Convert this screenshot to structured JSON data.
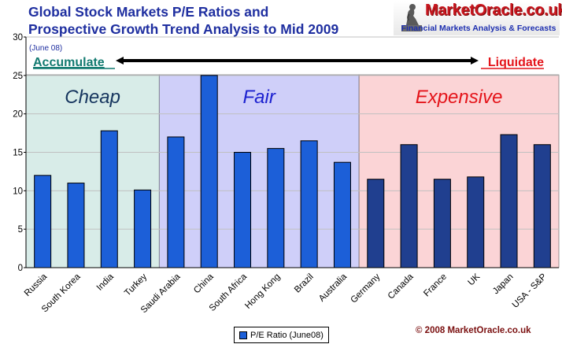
{
  "title_lines": [
    "Global Stock Markets P/E Ratios and",
    "Prospective Growth Trend Analysis to Mid 2009"
  ],
  "logo": {
    "name": "MarketOracle.co.uk",
    "tagline": "Financial Markets Analysis & Forecasts"
  },
  "copyright": "© 2008 MarketOracle.co.uk",
  "chart_data": {
    "type": "bar",
    "title": "Global Stock Markets P/E Ratios and Prospective Growth Trend Analysis to Mid 2009",
    "subtitle": "(June 08)",
    "categories": [
      "Russia",
      "South Korea",
      "India",
      "Turkey",
      "Saudi Arabia",
      "China",
      "South Africa",
      "Hong Kong",
      "Brazil",
      "Australia",
      "Germany",
      "Canada",
      "France",
      "UK",
      "Japan",
      "USA - S&P"
    ],
    "series": [
      {
        "name": "P/E Ratio (June08)",
        "values": [
          12,
          11,
          17.8,
          10.1,
          17,
          25,
          15,
          15.5,
          16.5,
          13.7,
          11.5,
          16,
          11.5,
          11.8,
          17.3,
          16
        ]
      }
    ],
    "ylim": [
      0,
      30
    ],
    "yticks": [
      0,
      5,
      10,
      15,
      20,
      25,
      30
    ],
    "grid": true,
    "legend": "bottom-center",
    "zones": [
      {
        "label": "Cheap",
        "color": "#d8ece8",
        "label_color": "#16355e",
        "from": 0,
        "to": 4
      },
      {
        "label": "Fair",
        "color": "#cfcff9",
        "label_color": "#1d22d0",
        "from": 4,
        "to": 10
      },
      {
        "label": "Expensive",
        "color": "#fbd4d6",
        "label_color": "#e4141a",
        "from": 10,
        "to": 16
      }
    ],
    "arrow": {
      "left_label": "Accumulate",
      "right_label": "Liquidate",
      "left_color": "#127a70",
      "right_color": "#e4141a"
    },
    "colors": {
      "bar": "#1c5fd8",
      "bar_dark": "#203f8f",
      "grid": "#c0c0c0"
    }
  }
}
